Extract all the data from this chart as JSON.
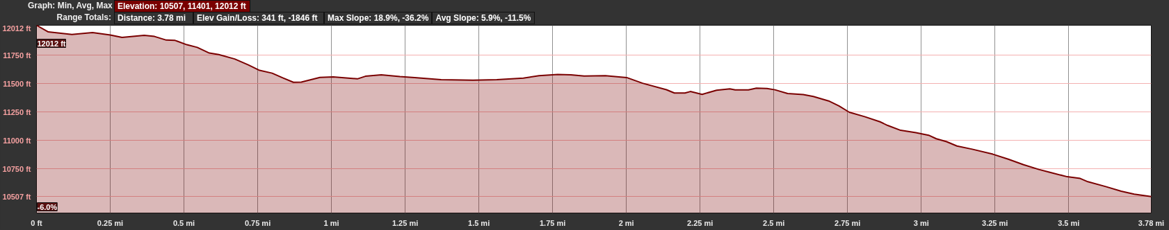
{
  "chart_data": {
    "type": "area",
    "annotations": [
      "Graph: Min, Avg, Max",
      "Elevation: 10507, 11401, 12012 ft",
      "Range Totals:",
      "Distance: 3.78 mi",
      "Elev Gain/Loss: 341 ft, -1846 ft",
      "Max Slope: 18.9%, -36.2%",
      "Avg Slope: 5.9%, -11.5%",
      {
        "text": "12012 ft",
        "x": 0,
        "y": 12012
      },
      "-6.0%"
    ],
    "x": [
      0,
      0.04,
      0.12,
      0.19,
      0.25,
      0.29,
      0.365,
      0.4,
      0.44,
      0.47,
      0.51,
      0.545,
      0.586,
      0.618,
      0.672,
      0.718,
      0.754,
      0.799,
      0.835,
      0.871,
      0.898,
      0.961,
      1.006,
      1.088,
      1.115,
      1.169,
      1.232,
      1.282,
      1.372,
      1.48,
      1.561,
      1.651,
      1.704,
      1.767,
      1.812,
      1.857,
      1.929,
      2.001,
      2.055,
      2.136,
      2.163,
      2.199,
      2.217,
      2.257,
      2.306,
      2.351,
      2.369,
      2.414,
      2.441,
      2.477,
      2.504,
      2.547,
      2.6,
      2.634,
      2.686,
      2.721,
      2.756,
      2.808,
      2.86,
      2.886,
      2.93,
      2.982,
      3.025,
      3.051,
      3.086,
      3.121,
      3.173,
      3.243,
      3.295,
      3.347,
      3.399,
      3.434,
      3.495,
      3.539,
      3.565,
      3.626,
      3.678,
      3.722,
      3.78
    ],
    "series": [
      {
        "color": "#7a0000",
        "values": [
          12012,
          11954,
          11932,
          11948,
          11927,
          11905,
          11923,
          11914,
          11882,
          11879,
          11841,
          11818,
          11768,
          11755,
          11716,
          11664,
          11618,
          11591,
          11550,
          11511,
          11513,
          11554,
          11559,
          11541,
          11564,
          11577,
          11561,
          11553,
          11534,
          11530,
          11534,
          11548,
          11569,
          11580,
          11577,
          11566,
          11569,
          11553,
          11503,
          11446,
          11417,
          11417,
          11430,
          11405,
          11441,
          11453,
          11444,
          11444,
          11460,
          11457,
          11445,
          11412,
          11403,
          11386,
          11347,
          11303,
          11248,
          11209,
          11164,
          11132,
          11089,
          11068,
          11046,
          11015,
          10989,
          10951,
          10923,
          10879,
          10835,
          10787,
          10745,
          10721,
          10681,
          10666,
          10637,
          10594,
          10554,
          10528,
          10507
        ]
      }
    ],
    "xlim": [
      0,
      3.78
    ],
    "xticks": [
      {
        "value": 0,
        "label": "0 ft"
      },
      {
        "value": 0.25,
        "label": "0.25 mi"
      },
      {
        "value": 0.5,
        "label": "0.5 mi"
      },
      {
        "value": 0.75,
        "label": "0.75 mi"
      },
      {
        "value": 1,
        "label": "1 mi"
      },
      {
        "value": 1.25,
        "label": "1.25 mi"
      },
      {
        "value": 1.5,
        "label": "1.5 mi"
      },
      {
        "value": 1.75,
        "label": "1.75 mi"
      },
      {
        "value": 2,
        "label": "2 mi"
      },
      {
        "value": 2.25,
        "label": "2.25 mi"
      },
      {
        "value": 2.5,
        "label": "2.5 mi"
      },
      {
        "value": 2.75,
        "label": "2.75 mi"
      },
      {
        "value": 3,
        "label": "3 mi"
      },
      {
        "value": 3.25,
        "label": "3.25 mi"
      },
      {
        "value": 3.5,
        "label": "3.5 mi"
      },
      {
        "value": 3.78,
        "label": "3.78 mi"
      }
    ],
    "ylim": [
      10362,
      12012
    ],
    "yticks": [
      {
        "value": 10507,
        "label": "10507 ft"
      },
      {
        "value": 10750,
        "label": "10750 ft"
      },
      {
        "value": 11000,
        "label": "11000 ft"
      },
      {
        "value": 11250,
        "label": "11250 ft"
      },
      {
        "value": 11500,
        "label": "11500 ft"
      },
      {
        "value": 11750,
        "label": "11750 ft"
      },
      {
        "value": 12012,
        "label": "12012 ft"
      }
    ],
    "grid": true
  }
}
